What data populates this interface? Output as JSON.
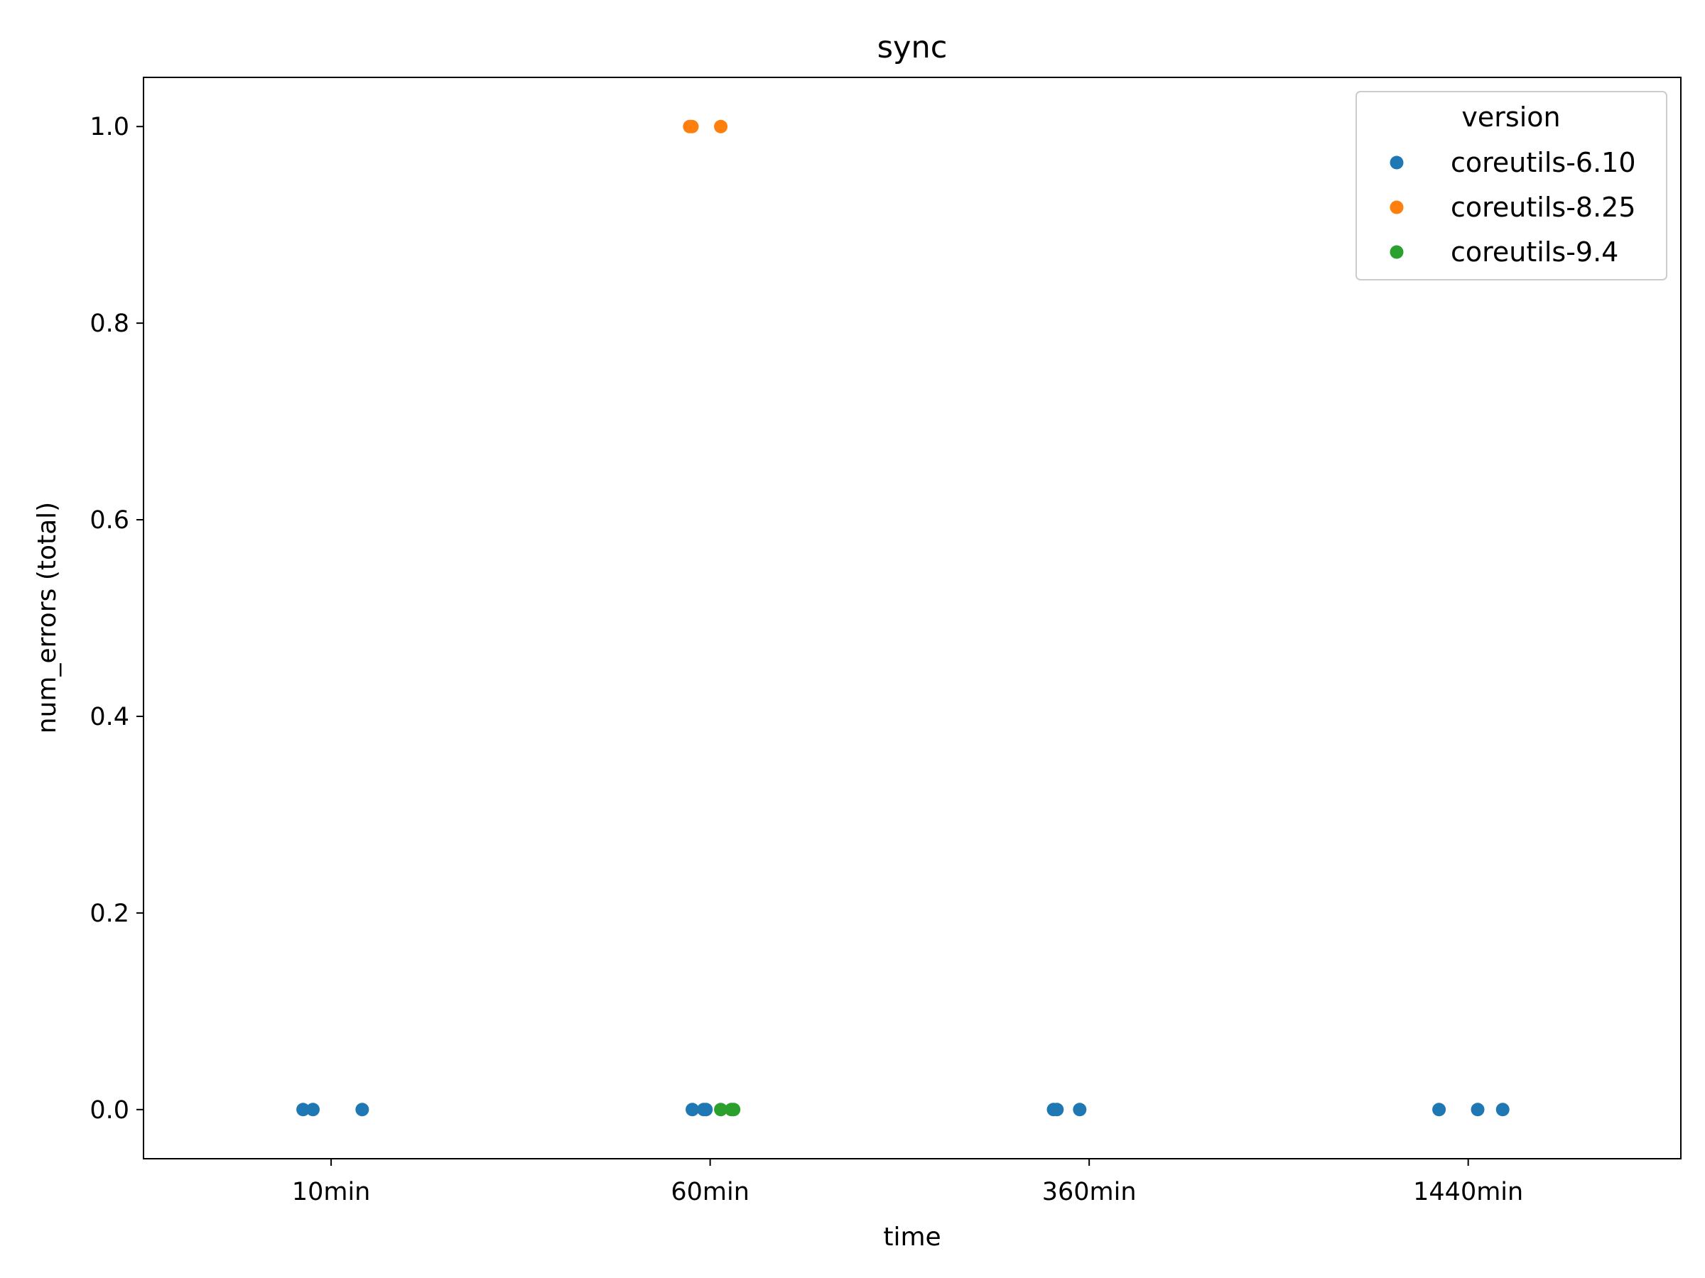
{
  "chart_data": {
    "type": "scatter",
    "title": "sync",
    "xlabel": "time",
    "ylabel": "num_errors (total)",
    "categories": [
      "10min",
      "60min",
      "360min",
      "1440min"
    ],
    "ylim": [
      -0.05,
      1.05
    ],
    "yticks": [
      "0.0",
      "0.2",
      "0.4",
      "0.6",
      "0.8",
      "1.0"
    ],
    "grid": false,
    "legend": {
      "title": "version",
      "placement": "top-right"
    },
    "series": [
      {
        "name": "coreutils-6.10",
        "color": "#1f77b4",
        "points": [
          {
            "x": "10min",
            "jitter": -0.074,
            "y": 0
          },
          {
            "x": "10min",
            "jitter": -0.048,
            "y": 0
          },
          {
            "x": "10min",
            "jitter": 0.082,
            "y": 0
          },
          {
            "x": "60min",
            "jitter": -0.047,
            "y": 0
          },
          {
            "x": "60min",
            "jitter": -0.017,
            "y": 0
          },
          {
            "x": "60min",
            "jitter": -0.011,
            "y": 0
          },
          {
            "x": "360min",
            "jitter": -0.094,
            "y": 0
          },
          {
            "x": "360min",
            "jitter": -0.085,
            "y": 0
          },
          {
            "x": "360min",
            "jitter": -0.025,
            "y": 0
          },
          {
            "x": "1440min",
            "jitter": -0.077,
            "y": 0
          },
          {
            "x": "1440min",
            "jitter": 0.025,
            "y": 0
          },
          {
            "x": "1440min",
            "jitter": 0.091,
            "y": 0
          }
        ]
      },
      {
        "name": "coreutils-8.25",
        "color": "#ff7f0e",
        "points": [
          {
            "x": "60min",
            "jitter": -0.054,
            "y": 1
          },
          {
            "x": "60min",
            "jitter": -0.048,
            "y": 1
          },
          {
            "x": "60min",
            "jitter": 0.028,
            "y": 1
          }
        ]
      },
      {
        "name": "coreutils-9.4",
        "color": "#2ca02c",
        "points": [
          {
            "x": "60min",
            "jitter": 0.028,
            "y": 0
          },
          {
            "x": "60min",
            "jitter": 0.056,
            "y": 0
          },
          {
            "x": "60min",
            "jitter": 0.062,
            "y": 0
          }
        ]
      }
    ]
  }
}
